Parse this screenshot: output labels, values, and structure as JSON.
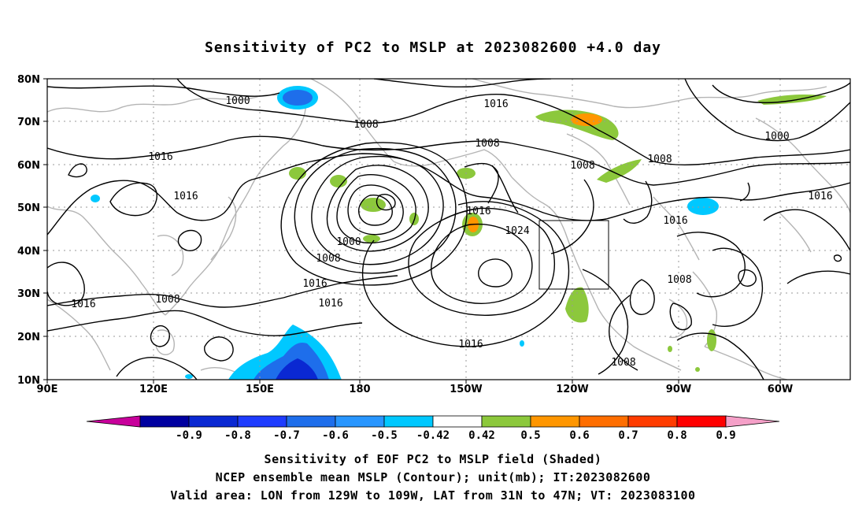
{
  "title": "Sensitivity of PC2 to MSLP at 2023082600 +4.0 day",
  "lat_labels": [
    "80N",
    "70N",
    "60N",
    "50N",
    "40N",
    "30N",
    "20N",
    "10N"
  ],
  "lon_labels": [
    "90E",
    "120E",
    "150E",
    "180",
    "150W",
    "120W",
    "90W",
    "60W"
  ],
  "contour_labels": [
    {
      "text": "1000",
      "name": "contour-label-1000-north"
    },
    {
      "text": "1008",
      "name": "contour-label-1008-north"
    },
    {
      "text": "1016",
      "name": "contour-label-1016-arctic"
    },
    {
      "text": "1008",
      "name": "contour-label-1008-pacific-north"
    },
    {
      "text": "1000",
      "name": "contour-label-1000-northeast"
    },
    {
      "text": "1016",
      "name": "contour-label-1016-siberia"
    },
    {
      "text": "1008",
      "name": "contour-label-1008-alaska"
    },
    {
      "text": "1008",
      "name": "contour-label-1008-canada"
    },
    {
      "text": "1016",
      "name": "contour-label-1016-asia"
    },
    {
      "text": "1016",
      "name": "contour-label-1016-east"
    },
    {
      "text": "1016",
      "name": "contour-label-1016-gulf-alaska"
    },
    {
      "text": "1016",
      "name": "contour-label-1016-hudson"
    },
    {
      "text": "1024",
      "name": "contour-label-1024-high"
    },
    {
      "text": "1000",
      "name": "contour-label-1000-low"
    },
    {
      "text": "1008",
      "name": "contour-label-1008-low"
    },
    {
      "text": "1016",
      "name": "contour-label-1016-low"
    },
    {
      "text": "1016",
      "name": "contour-label-1016-india"
    },
    {
      "text": "1008",
      "name": "contour-label-1008-asia-south"
    },
    {
      "text": "1016",
      "name": "contour-label-1016-central"
    },
    {
      "text": "1008",
      "name": "contour-label-1008-atlantic"
    },
    {
      "text": "1016",
      "name": "contour-label-1016-tropical"
    },
    {
      "text": "1008",
      "name": "contour-label-1008-mexico"
    }
  ],
  "colorbar": {
    "labels": [
      "-0.9",
      "-0.8",
      "-0.7",
      "-0.6",
      "-0.5",
      "-0.42",
      "0.42",
      "0.5",
      "0.6",
      "0.7",
      "0.8",
      "0.9"
    ],
    "colors": [
      "#c8009b",
      "#0000a0",
      "#0a28d2",
      "#1e3cff",
      "#1e6eeb",
      "#2896ff",
      "#00c8ff",
      "#ffffff",
      "#8cc83c",
      "#ff9600",
      "#ff6e00",
      "#ff3c00",
      "#ff0000",
      "#f5a0c8"
    ]
  },
  "valid_box": {
    "lon_min": -129,
    "lon_max": -109,
    "lat_min": 31,
    "lat_max": 47
  },
  "captions": [
    "Sensitivity of EOF PC2 to MSLP field (Shaded)",
    "NCEP ensemble mean MSLP (Contour); unit(mb); IT:2023082600",
    "Valid area: LON from 129W to 109W, LAT from 31N to 47N; VT: 2023083100"
  ]
}
